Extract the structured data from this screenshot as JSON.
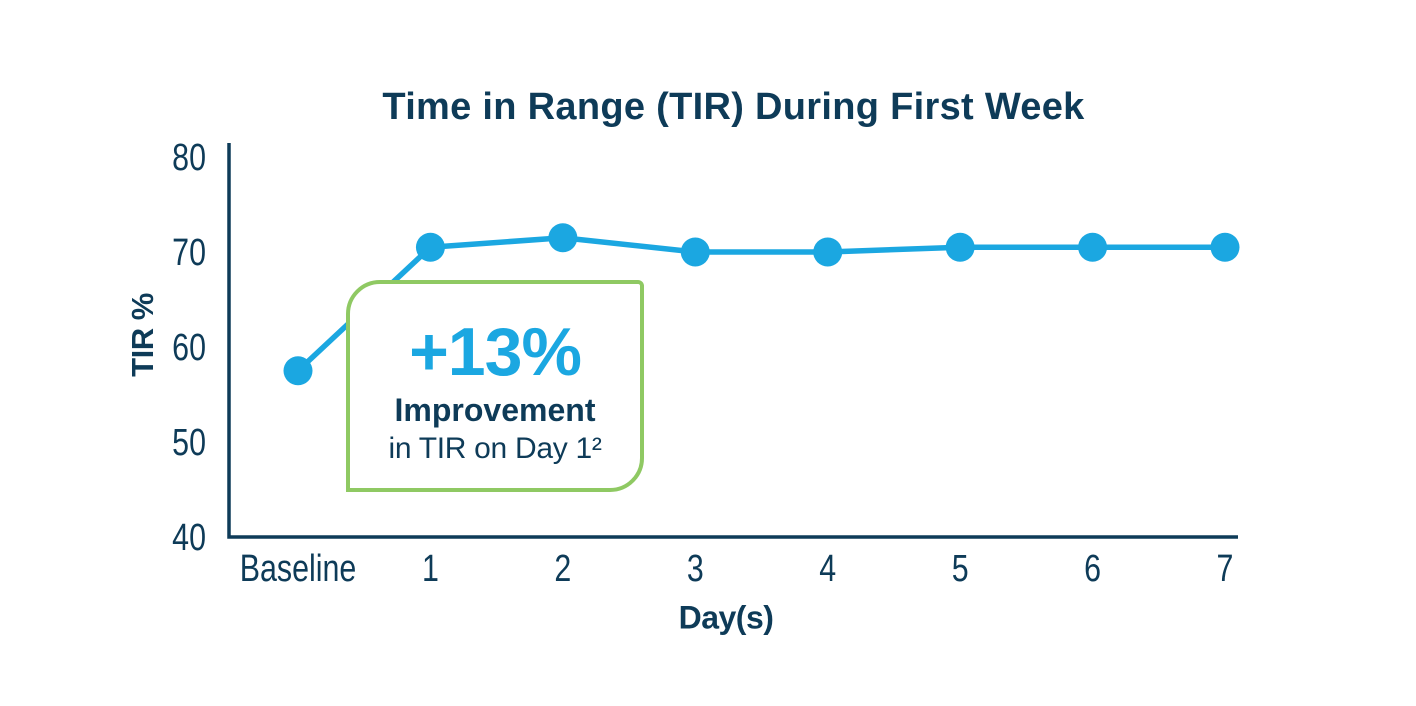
{
  "title": "Time in Range (TIR) During First Week",
  "chart_data": {
    "type": "line",
    "title": "Time in Range (TIR) During First Week",
    "categories": [
      "Baseline",
      "1",
      "2",
      "3",
      "4",
      "5",
      "6",
      "7"
    ],
    "series": [
      {
        "name": "TIR %",
        "values": [
          57.5,
          70.5,
          71.5,
          70,
          70,
          70.5,
          70.5,
          70.5
        ]
      }
    ],
    "xlabel": "Day(s)",
    "ylabel": "TIR %",
    "ylim": [
      40,
      80
    ],
    "yticks": [
      40,
      50,
      60,
      70,
      80
    ],
    "grid": false,
    "legend": false,
    "line_color": "#1ba7e1",
    "marker": "circle",
    "axis_color": "#0e3b58",
    "annotation": "+13% Improvement in TIR on Day 1"
  },
  "callout": {
    "value": "+13%",
    "line1": "Improvement",
    "line2": "in TIR on Day 1²",
    "border_color": "#8fc963",
    "value_color": "#1ba7e1",
    "text_color": "#0e3b58"
  },
  "colors": {
    "navy": "#0e3b58",
    "blue": "#1ba7e1",
    "green": "#8fc963",
    "background": "#ffffff"
  }
}
